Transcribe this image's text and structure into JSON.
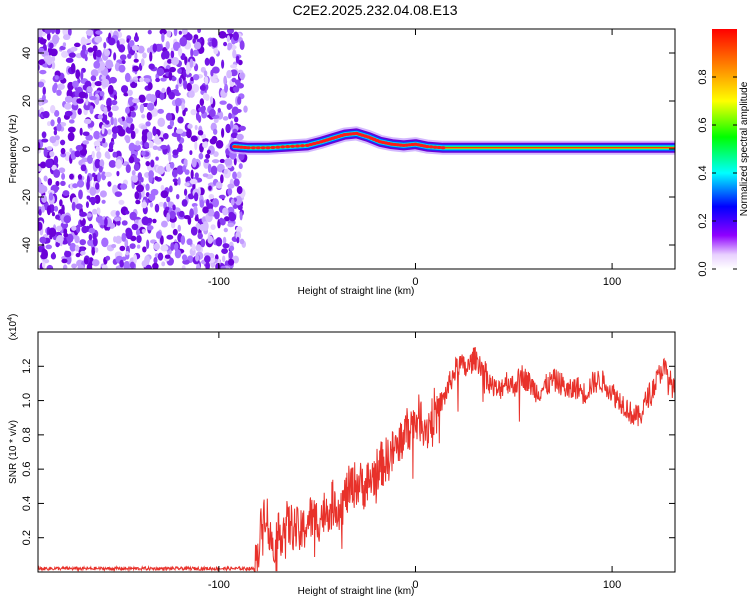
{
  "title": "C2E2.2025.232.04.08.E13",
  "colors": {
    "signal_line": "#e8312a",
    "spectrogram_points": "#6a00d8",
    "spectrogram_track_core": "#e8002a",
    "axis": "#000000"
  },
  "chart_data": [
    {
      "type": "heatmap",
      "xlabel": "Height of straight line (km)",
      "ylabel": "Frequency (Hz)",
      "xlim": [
        -192,
        132
      ],
      "ylim": [
        -50,
        50
      ],
      "xticks": [
        -100,
        0,
        100
      ],
      "yticks": [
        -40,
        -20,
        0,
        20,
        40
      ],
      "grid": false,
      "noise_region_x": [
        -192,
        -88
      ],
      "track": {
        "x": [
          -92,
          -85,
          -75,
          -65,
          -55,
          -48,
          -42,
          -36,
          -30,
          -24,
          -18,
          -12,
          -6,
          0,
          6,
          14,
          30,
          60,
          90,
          132
        ],
        "y": [
          1,
          0.5,
          0.5,
          1,
          1.5,
          3,
          4.5,
          6,
          6.5,
          5,
          3,
          2,
          1.5,
          2,
          1,
          0.5,
          0.5,
          0.5,
          0.5,
          0.5
        ]
      },
      "colorbar": {
        "label": "Normalized spectral amplitude",
        "range": [
          0,
          1
        ],
        "ticks": [
          0.0,
          0.2,
          0.4,
          0.6,
          0.8
        ],
        "tick_labels": [
          "0.0",
          "0.2",
          "0.4",
          "0.6",
          "0.8"
        ],
        "colormap": "rainbow"
      }
    },
    {
      "type": "line",
      "xlabel": "Height of straight line (km)",
      "ylabel": "SNR (10 * v/v)",
      "y_multiplier": "(x10",
      "y_multiplier_exp": "4",
      "y_multiplier_close": ")",
      "xlim": [
        -192,
        132
      ],
      "ylim": [
        0,
        1.4
      ],
      "xticks": [
        -100,
        0,
        100
      ],
      "yticks": [
        0.2,
        0.4,
        0.6,
        0.8,
        1.0,
        1.2
      ],
      "ytick_labels": [
        "0.2",
        "0.4",
        "0.6",
        "0.8",
        "1.0",
        "1.2"
      ],
      "grid": false,
      "series": [
        {
          "x": [
            -192,
            -150,
            -100,
            -82,
            -80,
            -78,
            -76,
            -74,
            -70,
            -66,
            -62,
            -58,
            -54,
            -50,
            -46,
            -42,
            -38,
            -34,
            -30,
            -26,
            -22,
            -18,
            -14,
            -10,
            -6,
            -2,
            2,
            6,
            10,
            14,
            18,
            22,
            26,
            30,
            34,
            38,
            42,
            46,
            50,
            54,
            58,
            62,
            66,
            70,
            74,
            78,
            82,
            86,
            90,
            94,
            98,
            102,
            106,
            110,
            114,
            118,
            122,
            126,
            130,
            132
          ],
          "y": [
            0.02,
            0.02,
            0.02,
            0.02,
            0.12,
            0.3,
            0.38,
            0.18,
            0.2,
            0.28,
            0.26,
            0.22,
            0.32,
            0.3,
            0.35,
            0.4,
            0.38,
            0.48,
            0.52,
            0.5,
            0.55,
            0.62,
            0.66,
            0.72,
            0.8,
            0.86,
            0.9,
            0.84,
            0.95,
            1.0,
            1.12,
            1.22,
            1.18,
            1.25,
            1.2,
            1.1,
            1.05,
            1.12,
            1.08,
            1.15,
            1.1,
            1.05,
            1.08,
            1.12,
            1.1,
            1.05,
            1.08,
            1.04,
            1.1,
            1.12,
            1.08,
            1.02,
            0.98,
            0.92,
            0.9,
            1.02,
            1.1,
            1.2,
            1.1,
            1.05
          ]
        }
      ]
    }
  ]
}
